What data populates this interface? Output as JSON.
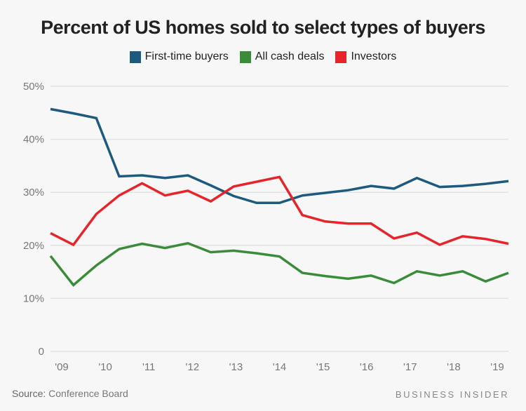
{
  "chart_data": {
    "type": "line",
    "title": "Percent of US homes sold to select types of buyers",
    "xlabel": "",
    "ylabel": "",
    "x": [
      2009,
      2009.5,
      2010,
      2010.5,
      2011,
      2011.5,
      2012,
      2012.5,
      2013,
      2013.5,
      2014,
      2014.5,
      2015,
      2015.5,
      2016,
      2016.5,
      2017,
      2017.5,
      2018,
      2018.5,
      2019
    ],
    "xlim": [
      2009,
      2019
    ],
    "x_tick_labels": [
      "'09",
      "'10",
      "'11",
      "'12",
      "'13",
      "'14",
      "'15",
      "'16",
      "'17",
      "'18",
      "'19"
    ],
    "ylim": [
      0,
      50
    ],
    "y_ticks": [
      0,
      10,
      20,
      30,
      40,
      50
    ],
    "y_tick_labels": [
      "0",
      "10%",
      "20%",
      "30%",
      "40%",
      "50%"
    ],
    "grid": "horizontal",
    "legend_position": "top-center",
    "series": [
      {
        "name": "First-time buyers",
        "color": "#1d5a7e",
        "values": [
          45.7,
          44.9,
          44.0,
          33.0,
          33.2,
          32.7,
          33.2,
          31.3,
          29.3,
          28.0,
          28.0,
          29.4,
          29.9,
          30.4,
          31.2,
          30.7,
          32.7,
          31.0,
          31.2,
          31.6,
          32.1
        ]
      },
      {
        "name": "All cash deals",
        "color": "#3b8c3a",
        "values": [
          18.0,
          12.5,
          16.2,
          19.3,
          20.3,
          19.5,
          20.4,
          18.7,
          19.0,
          18.5,
          17.9,
          14.8,
          14.2,
          13.7,
          14.3,
          12.9,
          15.1,
          14.3,
          15.1,
          13.2,
          14.8
        ]
      },
      {
        "name": "Investors",
        "color": "#e5242b",
        "values": [
          22.3,
          20.1,
          25.9,
          29.4,
          31.7,
          29.4,
          30.3,
          28.3,
          31.1,
          32.0,
          32.9,
          25.7,
          24.5,
          24.1,
          24.1,
          21.3,
          22.4,
          20.1,
          21.7,
          21.2,
          20.3
        ]
      }
    ]
  },
  "footer": {
    "source_label": "Source:",
    "source_value": "Conference Board",
    "brand": "BUSINESS INSIDER"
  }
}
